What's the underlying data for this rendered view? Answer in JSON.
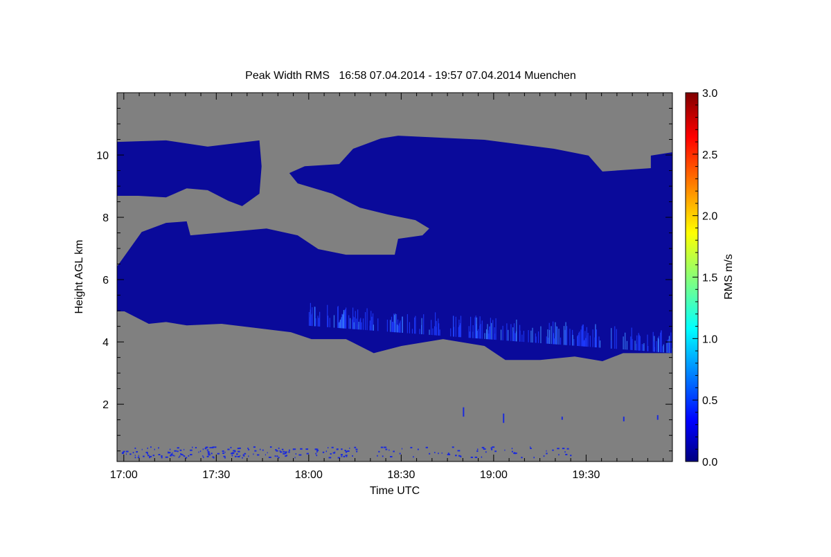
{
  "chart_data": {
    "type": "heatmap",
    "title": "Peak Width RMS   16:58 07.04.2014 - 19:57 07.04.2014 Muenchen",
    "xlabel": "Time UTC",
    "ylabel": "Height AGL km",
    "x_unit": "minutes since 17:00 UTC",
    "xlim": [
      -2.2,
      178
    ],
    "ylim": [
      0.16,
      12
    ],
    "x_ticks": [
      {
        "value": 0,
        "label": "17:00"
      },
      {
        "value": 30,
        "label": "17:30"
      },
      {
        "value": 60,
        "label": "18:00"
      },
      {
        "value": 90,
        "label": "18:30"
      },
      {
        "value": 120,
        "label": "19:00"
      },
      {
        "value": 150,
        "label": "19:30"
      }
    ],
    "y_ticks": [
      {
        "value": 2,
        "label": "2"
      },
      {
        "value": 4,
        "label": "4"
      },
      {
        "value": 6,
        "label": "6"
      },
      {
        "value": 8,
        "label": "8"
      },
      {
        "value": 10,
        "label": "10"
      }
    ],
    "colorbar": {
      "label": "RMS m/s",
      "range": [
        0,
        3
      ],
      "ticks": [
        "0.0",
        "0.5",
        "1.0",
        "1.5",
        "2.0",
        "2.5",
        "3.0"
      ],
      "colormap": "jet"
    },
    "background_color": "#808080",
    "cloud_color": "#0a0a9a",
    "fringe_color": "#1e3cff",
    "regions": [
      {
        "name": "upper-cloud-left",
        "value": 0.2,
        "points": [
          [
            -2.2,
            10.42
          ],
          [
            13.7,
            10.47
          ],
          [
            27.2,
            10.27
          ],
          [
            44,
            10.47
          ],
          [
            44.7,
            9.64
          ],
          [
            44,
            8.76
          ],
          [
            38.4,
            8.36
          ],
          [
            33.9,
            8.53
          ],
          [
            27.2,
            8.87
          ],
          [
            20.4,
            8.93
          ],
          [
            13.7,
            8.64
          ],
          [
            4.7,
            8.69
          ],
          [
            -2.2,
            8.69
          ]
        ]
      },
      {
        "name": "main-cloud",
        "value": 0.2,
        "points": [
          [
            -2.2,
            4.98
          ],
          [
            -2.2,
            6.42
          ],
          [
            5.8,
            7.53
          ],
          [
            13.7,
            7.82
          ],
          [
            20.4,
            7.87
          ],
          [
            21.6,
            7.42
          ],
          [
            33.9,
            7.53
          ],
          [
            46.3,
            7.64
          ],
          [
            56.4,
            7.42
          ],
          [
            63.1,
            6.98
          ],
          [
            72.1,
            6.8
          ],
          [
            87.9,
            6.8
          ],
          [
            89,
            7.31
          ],
          [
            96.9,
            7.42
          ],
          [
            99.1,
            7.64
          ],
          [
            94.6,
            7.91
          ],
          [
            85.6,
            8.09
          ],
          [
            76.6,
            8.31
          ],
          [
            67.6,
            8.76
          ],
          [
            56.4,
            9.09
          ],
          [
            53.7,
            9.42
          ],
          [
            58.7,
            9.64
          ],
          [
            69.9,
            9.71
          ],
          [
            74.4,
            10.2
          ],
          [
            83.4,
            10.53
          ],
          [
            89,
            10.62
          ],
          [
            117,
            10.49
          ],
          [
            139.6,
            10.2
          ],
          [
            150.8,
            9.98
          ],
          [
            155.3,
            9.47
          ],
          [
            171,
            9.58
          ],
          [
            171,
            9.98
          ],
          [
            178,
            10.09
          ],
          [
            178,
            3.64
          ],
          [
            162,
            3.64
          ],
          [
            155.3,
            3.38
          ],
          [
            146.3,
            3.53
          ],
          [
            135.1,
            3.42
          ],
          [
            123.8,
            3.42
          ],
          [
            117,
            3.87
          ],
          [
            103.6,
            4.09
          ],
          [
            90.1,
            3.87
          ],
          [
            81.1,
            3.64
          ],
          [
            72.1,
            4.09
          ],
          [
            60.9,
            4.09
          ],
          [
            54.2,
            4.31
          ],
          [
            45.2,
            4.42
          ],
          [
            31.7,
            4.58
          ],
          [
            20.4,
            4.53
          ],
          [
            13.7,
            4.64
          ],
          [
            8.1,
            4.58
          ],
          [
            0.2,
            4.98
          ]
        ]
      }
    ]
  }
}
